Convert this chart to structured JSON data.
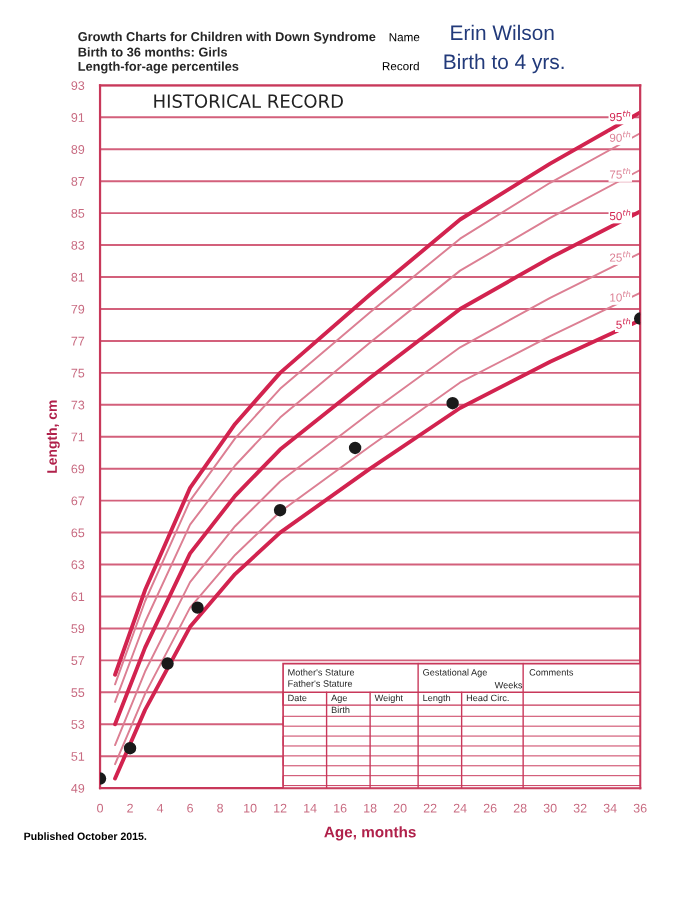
{
  "chart_data": {
    "type": "line",
    "title": "Growth Charts for Children with Down Syndrome",
    "subtitle": "Birth to 36 months: Girls\nLength-for-age percentiles",
    "xlabel": "Age, months",
    "ylabel": "Length, cm",
    "x": [
      1,
      3,
      6,
      9,
      12,
      18,
      24,
      30,
      36
    ],
    "series": [
      {
        "name": "95$^{th}$",
        "color": "#d2234f",
        "values": [
          56.1,
          61.4,
          67.8,
          71.8,
          75.0,
          79.9,
          84.6,
          88.1,
          91.3
        ]
      },
      {
        "name": "90$^{th}$",
        "color": "#dc7f93",
        "values": [
          55.5,
          60.7,
          67.0,
          70.9,
          74.0,
          78.8,
          83.4,
          86.9,
          90.0
        ]
      },
      {
        "name": "75$^{th}$",
        "color": "#dc7f93",
        "values": [
          54.4,
          59.4,
          65.5,
          69.2,
          72.2,
          76.9,
          81.4,
          84.7,
          87.7
        ]
      },
      {
        "name": "50$^{th}$",
        "color": "#d2234f",
        "values": [
          53.0,
          57.8,
          63.7,
          67.3,
          70.2,
          74.7,
          79.0,
          82.2,
          85.1
        ]
      },
      {
        "name": "25$^{th}$",
        "color": "#dc7f93",
        "values": [
          51.7,
          56.3,
          61.9,
          65.4,
          68.2,
          72.5,
          76.6,
          79.7,
          82.5
        ]
      },
      {
        "name": "10$^{th}$",
        "color": "#dc7f93",
        "values": [
          50.5,
          54.9,
          60.3,
          63.6,
          66.3,
          70.4,
          74.4,
          77.3,
          80.0
        ]
      },
      {
        "name": "5$^{th}$",
        "color": "#d2234f",
        "values": [
          49.6,
          53.9,
          59.1,
          62.4,
          65.0,
          69.0,
          72.8,
          75.7,
          78.3
        ]
      },
      {
        "type": "scatter",
        "color": "#1a1a1a",
        "marker": "circle",
        "x": [
          0,
          2,
          4.5,
          6.5,
          12,
          17,
          23.5,
          36
        ],
        "values": [
          49.6,
          51.5,
          56.8,
          60.3,
          66.4,
          70.3,
          73.1,
          78.4
        ]
      }
    ],
    "xlim": [
      0,
      36
    ],
    "xticks": [
      0,
      2,
      4,
      6,
      8,
      10,
      12,
      14,
      16,
      18,
      20,
      22,
      24,
      26,
      28,
      30,
      32,
      34,
      36
    ],
    "ylim": [
      49,
      93
    ],
    "yticks": [
      49,
      51,
      53,
      55,
      57,
      59,
      61,
      63,
      65,
      67,
      69,
      71,
      73,
      75,
      77,
      79,
      81,
      83,
      85,
      87,
      89,
      91,
      93
    ],
    "grid": "y",
    "legend": false,
    "annotations": [
      "HISTORICAL RECORD",
      "Name",
      "Erin Wilson",
      "Record",
      "Birth to 4 yrs.",
      "Published October 2015.",
      "Mother's Stature",
      "Father's Stature",
      "Gestational Age",
      "Weeks",
      "Comments",
      "Date",
      "Age",
      "Birth",
      "Weight",
      "Length",
      "Head Circ."
    ]
  }
}
